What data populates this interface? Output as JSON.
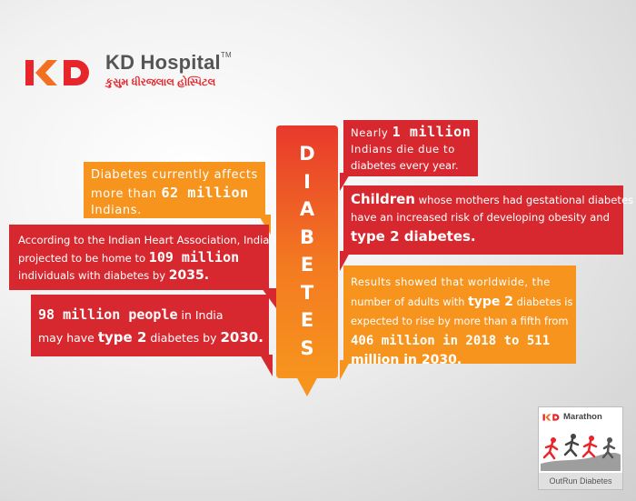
{
  "brand": {
    "name": "KD Hospital",
    "trademark": "TM",
    "subtitle": "કુસુમ ધીરજલાલ હોસ્પિટલ",
    "colors": {
      "red": "#e7262b",
      "orange": "#f7941d"
    }
  },
  "vertical_title": [
    "D",
    "I",
    "A",
    "B",
    "E",
    "T",
    "E",
    "S"
  ],
  "left": {
    "b1": {
      "l1": "Diabetes currently affects",
      "l2a": "more than ",
      "l2b": "62 million",
      "l3": "Indians."
    },
    "b2": {
      "l1": "According to the Indian Heart Association, India is",
      "l2a": "projected to be home to ",
      "l2b": "109 million",
      "l3a": "individuals with diabetes by ",
      "l3b": "2035."
    },
    "b3": {
      "l1a": "98 million people",
      "l1b": " in India",
      "l2a": "may have ",
      "l2b": "type 2",
      "l2c": " diabetes by ",
      "l2d": "2030."
    }
  },
  "right": {
    "b4": {
      "l1a": "Nearly ",
      "l1b": "1 million",
      "l2": "Indians die due to",
      "l3": "diabetes every year."
    },
    "b5": {
      "l1a": "Children",
      "l1b": " whose mothers had gestational diabetes",
      "l2": "have an increased risk of developing obesity and",
      "l3": "type 2 diabetes."
    },
    "b6": {
      "l1": "Results showed that worldwide, the",
      "l2a": "number of adults with ",
      "l2b": "type 2",
      "l2c": " diabetes is",
      "l3": "expected to rise by more than a fifth from",
      "l4": "406 million in 2018 to 511",
      "l5": "million in 2030."
    }
  },
  "badge": {
    "title": "Marathon",
    "footer": "OutRun Diabetes"
  }
}
